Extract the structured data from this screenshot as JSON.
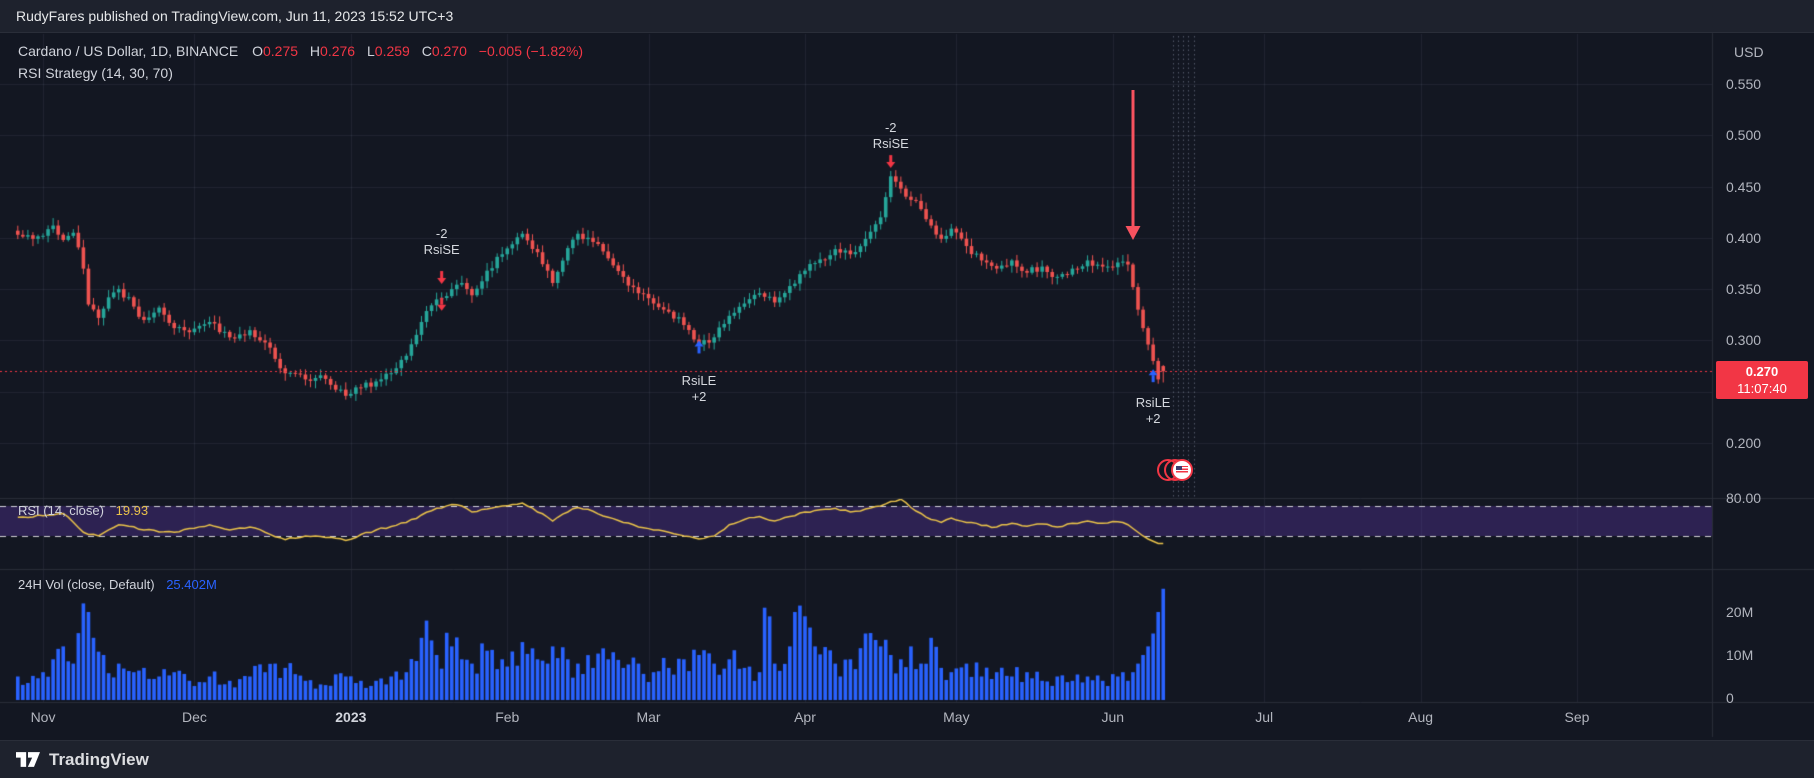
{
  "attribution": {
    "text": "RudyFares published on TradingView.com, Jun 11, 2023 15:52 UTC+3"
  },
  "legend": {
    "title": "Cardano / US Dollar, 1D, BINANCE",
    "ohlc": {
      "o_label": "O",
      "o": "0.275",
      "h_label": "H",
      "h": "0.276",
      "l_label": "L",
      "l": "0.259",
      "c_label": "C",
      "c": "0.270",
      "change": "−0.005 (−1.82%)"
    },
    "strategy": "RSI Strategy (14, 30, 70)"
  },
  "rsi_pane": {
    "label": "RSI (14, close)",
    "value": "19.93",
    "scale_tick": "80.00",
    "upper_band": 70,
    "lower_band": 30
  },
  "volume_pane": {
    "label": "24H Vol (close, Default)",
    "value": "25.402M",
    "ticks": [
      {
        "v": 20,
        "label": "20M"
      },
      {
        "v": 10,
        "label": "10M"
      },
      {
        "v": 0,
        "label": "0"
      }
    ]
  },
  "price_scale": {
    "currency": "USD",
    "ticks": [
      0.55,
      0.5,
      0.45,
      0.4,
      0.35,
      0.3,
      0.2
    ],
    "last_price_label": "0.270",
    "countdown": "11:07:40"
  },
  "time_axis": {
    "months": [
      {
        "label": "Nov",
        "day": 5
      },
      {
        "label": "Dec",
        "day": 35
      },
      {
        "label": "2023",
        "day": 66,
        "major": true
      },
      {
        "label": "Feb",
        "day": 97
      },
      {
        "label": "Mar",
        "day": 125
      },
      {
        "label": "Apr",
        "day": 156
      },
      {
        "label": "May",
        "day": 186
      },
      {
        "label": "Jun",
        "day": 217
      },
      {
        "label": "Jul",
        "day": 247
      },
      {
        "label": "Aug",
        "day": 278
      },
      {
        "label": "Sep",
        "day": 309
      }
    ]
  },
  "footer": {
    "brand": "TradingView"
  },
  "colors": {
    "bg": "#131722",
    "panel": "#1e222d",
    "up": "#26a69a",
    "down": "#ef5350",
    "accent_red": "#f23645",
    "accent_blue": "#2962ff",
    "rsi_line": "#e9c24a",
    "band_fill": "rgba(103,58,183,0.32)",
    "volume": "#2962ff",
    "grid": "rgba(134,142,163,0.12)",
    "text": "#d1d4dc",
    "muted": "#b2b5be"
  },
  "chart_data": {
    "type": "candlestick",
    "instrument": "Cardano / US Dollar",
    "interval": "1D",
    "exchange": "BINANCE",
    "panes": [
      "price",
      "rsi",
      "volume"
    ],
    "price_axis_range": [
      0.19,
      0.57
    ],
    "volume_axis_range_m": [
      0,
      25.402
    ],
    "days_total": 228,
    "last_candle": {
      "open": 0.275,
      "high": 0.276,
      "low": 0.259,
      "close": 0.27,
      "change": -0.005,
      "change_pct": -1.82
    },
    "price_keypoints": [
      [
        0,
        0.403
      ],
      [
        5,
        0.402
      ],
      [
        7,
        0.412
      ],
      [
        9,
        0.398
      ],
      [
        11,
        0.405
      ],
      [
        13,
        0.37
      ],
      [
        14,
        0.335
      ],
      [
        16,
        0.322
      ],
      [
        18,
        0.342
      ],
      [
        20,
        0.35
      ],
      [
        23,
        0.333
      ],
      [
        25,
        0.32
      ],
      [
        28,
        0.332
      ],
      [
        31,
        0.312
      ],
      [
        34,
        0.308
      ],
      [
        38,
        0.318
      ],
      [
        42,
        0.303
      ],
      [
        46,
        0.31
      ],
      [
        49,
        0.298
      ],
      [
        51,
        0.282
      ],
      [
        53,
        0.268
      ],
      [
        57,
        0.262
      ],
      [
        60,
        0.266
      ],
      [
        63,
        0.252
      ],
      [
        65,
        0.246
      ],
      [
        68,
        0.254
      ],
      [
        71,
        0.26
      ],
      [
        74,
        0.268
      ],
      [
        77,
        0.285
      ],
      [
        80,
        0.318
      ],
      [
        83,
        0.34
      ],
      [
        86,
        0.35
      ],
      [
        88,
        0.356
      ],
      [
        90,
        0.344
      ],
      [
        93,
        0.368
      ],
      [
        96,
        0.384
      ],
      [
        100,
        0.404
      ],
      [
        103,
        0.386
      ],
      [
        105,
        0.368
      ],
      [
        106,
        0.356
      ],
      [
        109,
        0.39
      ],
      [
        111,
        0.404
      ],
      [
        114,
        0.396
      ],
      [
        117,
        0.38
      ],
      [
        120,
        0.362
      ],
      [
        123,
        0.346
      ],
      [
        126,
        0.336
      ],
      [
        129,
        0.328
      ],
      [
        132,
        0.315
      ],
      [
        135,
        0.296
      ],
      [
        138,
        0.303
      ],
      [
        141,
        0.324
      ],
      [
        144,
        0.336
      ],
      [
        147,
        0.346
      ],
      [
        150,
        0.337
      ],
      [
        153,
        0.353
      ],
      [
        156,
        0.368
      ],
      [
        159,
        0.379
      ],
      [
        162,
        0.389
      ],
      [
        165,
        0.384
      ],
      [
        168,
        0.399
      ],
      [
        171,
        0.42
      ],
      [
        173,
        0.46
      ],
      [
        175,
        0.448
      ],
      [
        177,
        0.437
      ],
      [
        179,
        0.428
      ],
      [
        181,
        0.412
      ],
      [
        183,
        0.399
      ],
      [
        185,
        0.409
      ],
      [
        188,
        0.392
      ],
      [
        191,
        0.378
      ],
      [
        194,
        0.37
      ],
      [
        197,
        0.378
      ],
      [
        200,
        0.366
      ],
      [
        203,
        0.372
      ],
      [
        206,
        0.362
      ],
      [
        209,
        0.37
      ],
      [
        212,
        0.378
      ],
      [
        215,
        0.372
      ],
      [
        218,
        0.376
      ],
      [
        220,
        0.374
      ],
      [
        221,
        0.352
      ],
      [
        222,
        0.33
      ],
      [
        223,
        0.312
      ],
      [
        224,
        0.296
      ],
      [
        225,
        0.28
      ],
      [
        226,
        0.262
      ],
      [
        227,
        0.27
      ]
    ],
    "rsi_keypoints": [
      [
        0,
        55
      ],
      [
        5,
        57
      ],
      [
        9,
        60
      ],
      [
        13,
        35
      ],
      [
        16,
        30
      ],
      [
        20,
        45
      ],
      [
        25,
        38
      ],
      [
        31,
        35
      ],
      [
        34,
        40
      ],
      [
        38,
        45
      ],
      [
        42,
        38
      ],
      [
        46,
        42
      ],
      [
        49,
        35
      ],
      [
        53,
        25
      ],
      [
        57,
        30
      ],
      [
        61,
        28
      ],
      [
        65,
        24
      ],
      [
        68,
        32
      ],
      [
        71,
        38
      ],
      [
        77,
        48
      ],
      [
        80,
        58
      ],
      [
        83,
        67
      ],
      [
        86,
        72
      ],
      [
        88,
        70
      ],
      [
        90,
        62
      ],
      [
        93,
        66
      ],
      [
        96,
        70
      ],
      [
        100,
        74
      ],
      [
        103,
        62
      ],
      [
        105,
        55
      ],
      [
        106,
        50
      ],
      [
        109,
        62
      ],
      [
        111,
        68
      ],
      [
        114,
        63
      ],
      [
        117,
        55
      ],
      [
        120,
        48
      ],
      [
        123,
        42
      ],
      [
        126,
        38
      ],
      [
        129,
        35
      ],
      [
        132,
        30
      ],
      [
        135,
        26
      ],
      [
        138,
        30
      ],
      [
        141,
        45
      ],
      [
        144,
        52
      ],
      [
        147,
        56
      ],
      [
        150,
        50
      ],
      [
        153,
        56
      ],
      [
        156,
        62
      ],
      [
        159,
        65
      ],
      [
        162,
        67
      ],
      [
        165,
        62
      ],
      [
        168,
        66
      ],
      [
        171,
        70
      ],
      [
        173,
        76
      ],
      [
        175,
        79
      ],
      [
        177,
        68
      ],
      [
        179,
        60
      ],
      [
        181,
        52
      ],
      [
        183,
        48
      ],
      [
        185,
        54
      ],
      [
        188,
        48
      ],
      [
        191,
        44
      ],
      [
        194,
        42
      ],
      [
        197,
        47
      ],
      [
        200,
        43
      ],
      [
        203,
        46
      ],
      [
        206,
        42
      ],
      [
        209,
        47
      ],
      [
        212,
        50
      ],
      [
        215,
        47
      ],
      [
        218,
        49
      ],
      [
        220,
        45
      ],
      [
        221,
        40
      ],
      [
        222,
        35
      ],
      [
        223,
        30
      ],
      [
        224,
        26
      ],
      [
        225,
        23
      ],
      [
        226,
        20
      ],
      [
        227,
        19.93
      ]
    ],
    "rsi_last": 19.93,
    "volume_keypoints_m": [
      [
        0,
        5
      ],
      [
        5,
        6
      ],
      [
        7,
        9
      ],
      [
        9,
        12
      ],
      [
        11,
        8
      ],
      [
        13,
        22
      ],
      [
        14,
        20
      ],
      [
        15,
        14
      ],
      [
        17,
        10
      ],
      [
        20,
        8
      ],
      [
        23,
        6
      ],
      [
        25,
        7
      ],
      [
        28,
        5
      ],
      [
        31,
        6
      ],
      [
        34,
        4
      ],
      [
        38,
        5
      ],
      [
        42,
        4
      ],
      [
        46,
        5
      ],
      [
        49,
        6
      ],
      [
        51,
        8
      ],
      [
        53,
        7
      ],
      [
        57,
        4
      ],
      [
        61,
        3
      ],
      [
        65,
        5
      ],
      [
        68,
        4
      ],
      [
        71,
        4
      ],
      [
        74,
        5
      ],
      [
        77,
        6
      ],
      [
        80,
        14
      ],
      [
        81,
        18
      ],
      [
        83,
        10
      ],
      [
        86,
        12
      ],
      [
        88,
        9
      ],
      [
        90,
        8
      ],
      [
        93,
        11
      ],
      [
        96,
        9
      ],
      [
        100,
        13
      ],
      [
        103,
        9
      ],
      [
        105,
        8
      ],
      [
        106,
        12
      ],
      [
        109,
        9
      ],
      [
        111,
        8
      ],
      [
        114,
        7
      ],
      [
        117,
        9
      ],
      [
        120,
        7
      ],
      [
        123,
        8
      ],
      [
        126,
        6
      ],
      [
        129,
        7
      ],
      [
        132,
        9
      ],
      [
        135,
        10
      ],
      [
        138,
        8
      ],
      [
        141,
        9
      ],
      [
        144,
        7
      ],
      [
        147,
        6
      ],
      [
        148,
        21
      ],
      [
        150,
        8
      ],
      [
        153,
        12
      ],
      [
        154,
        20
      ],
      [
        156,
        19
      ],
      [
        158,
        12
      ],
      [
        162,
        8
      ],
      [
        165,
        9
      ],
      [
        168,
        15
      ],
      [
        171,
        12
      ],
      [
        173,
        10
      ],
      [
        175,
        9
      ],
      [
        177,
        12
      ],
      [
        179,
        8
      ],
      [
        181,
        14
      ],
      [
        183,
        7
      ],
      [
        185,
        6
      ],
      [
        188,
        8
      ],
      [
        191,
        5
      ],
      [
        194,
        6
      ],
      [
        197,
        5
      ],
      [
        200,
        6
      ],
      [
        203,
        4
      ],
      [
        206,
        5
      ],
      [
        209,
        4
      ],
      [
        212,
        5
      ],
      [
        215,
        4
      ],
      [
        218,
        5
      ],
      [
        220,
        4
      ],
      [
        221,
        6
      ],
      [
        222,
        8
      ],
      [
        223,
        10
      ],
      [
        224,
        12
      ],
      [
        225,
        15
      ],
      [
        226,
        20
      ],
      [
        227,
        25.402
      ]
    ],
    "volume_last_m": 25.402,
    "signals": [
      {
        "kind": "short",
        "text_top": "-2",
        "text": "RsiSE",
        "day": 84,
        "label_price": 0.412,
        "arrow_prices": [
          0.355,
          0.329
        ]
      },
      {
        "kind": "long",
        "text": "RsiLE",
        "text_bottom": "+2",
        "day": 135,
        "label_price": 0.268,
        "arrow_prices": [
          0.3
        ]
      },
      {
        "kind": "short",
        "text_top": "-2",
        "text": "RsiSE",
        "day": 173,
        "label_price": 0.515,
        "arrow_prices": [
          0.468
        ]
      },
      {
        "kind": "long",
        "text": "RsiLE",
        "text_bottom": "+2",
        "day": 225,
        "label_price": 0.247,
        "arrow_prices": [
          0.272
        ]
      }
    ],
    "current_price_line": 0.27,
    "big_arrow": {
      "day": 221,
      "from_price": 0.542,
      "to_price": 0.398
    },
    "future_dashed_days": [
      229,
      230,
      231,
      232,
      233
    ],
    "event_icon_day": 230
  }
}
